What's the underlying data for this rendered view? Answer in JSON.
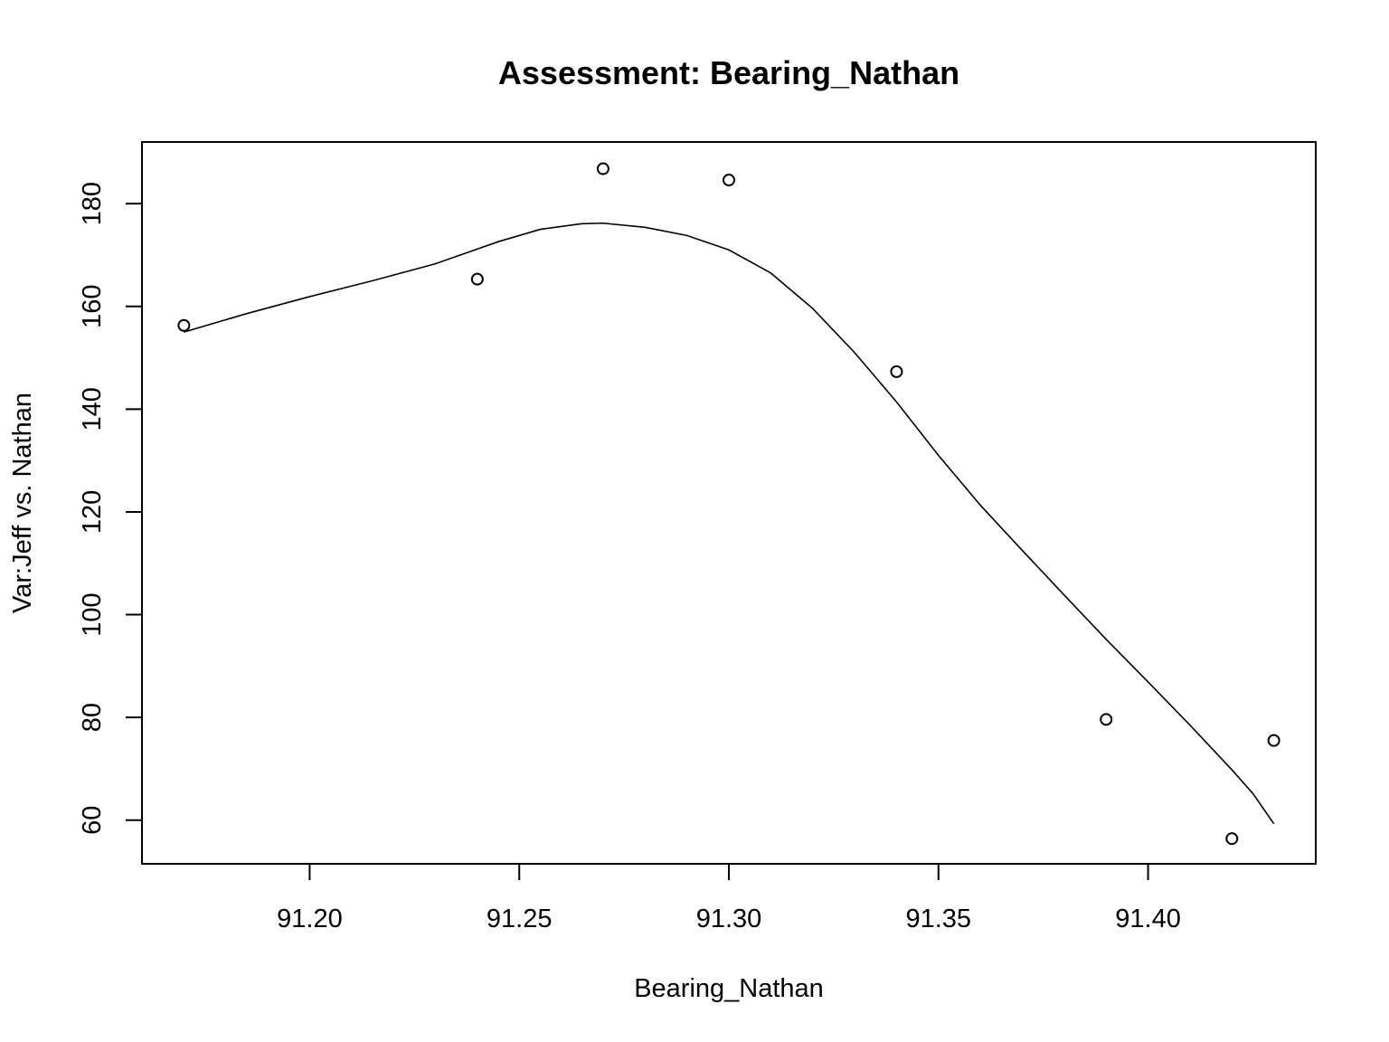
{
  "chart_data": {
    "type": "scatter",
    "title": "Assessment: Bearing_Nathan",
    "xlabel": "Bearing_Nathan",
    "ylabel": "Var:Jeff vs. Nathan",
    "xlim": [
      91.16,
      91.44
    ],
    "ylim": [
      51.5,
      192
    ],
    "x_ticks": [
      91.2,
      91.25,
      91.3,
      91.35,
      91.4
    ],
    "x_tick_labels": [
      "91.20",
      "91.25",
      "91.30",
      "91.35",
      "91.40"
    ],
    "y_ticks": [
      60,
      80,
      100,
      120,
      140,
      160,
      180
    ],
    "y_tick_labels": [
      "60",
      "80",
      "100",
      "120",
      "140",
      "160",
      "180"
    ],
    "grid": false,
    "points": [
      {
        "x": 91.17,
        "y": 156.3
      },
      {
        "x": 91.24,
        "y": 165.3
      },
      {
        "x": 91.27,
        "y": 186.8
      },
      {
        "x": 91.3,
        "y": 184.6
      },
      {
        "x": 91.34,
        "y": 147.3
      },
      {
        "x": 91.39,
        "y": 79.6
      },
      {
        "x": 91.42,
        "y": 56.4
      },
      {
        "x": 91.43,
        "y": 75.5
      }
    ],
    "smooth_line": [
      {
        "x": 91.17,
        "y": 155.0
      },
      {
        "x": 91.185,
        "y": 158.6
      },
      {
        "x": 91.2,
        "y": 161.9
      },
      {
        "x": 91.215,
        "y": 165.0
      },
      {
        "x": 91.23,
        "y": 168.3
      },
      {
        "x": 91.245,
        "y": 172.6
      },
      {
        "x": 91.255,
        "y": 175.0
      },
      {
        "x": 91.265,
        "y": 176.1
      },
      {
        "x": 91.27,
        "y": 176.2
      },
      {
        "x": 91.28,
        "y": 175.4
      },
      {
        "x": 91.29,
        "y": 173.8
      },
      {
        "x": 91.3,
        "y": 171.0
      },
      {
        "x": 91.31,
        "y": 166.5
      },
      {
        "x": 91.32,
        "y": 159.6
      },
      {
        "x": 91.33,
        "y": 151.0
      },
      {
        "x": 91.34,
        "y": 141.4
      },
      {
        "x": 91.35,
        "y": 131.0
      },
      {
        "x": 91.36,
        "y": 121.3
      },
      {
        "x": 91.37,
        "y": 112.5
      },
      {
        "x": 91.38,
        "y": 103.8
      },
      {
        "x": 91.39,
        "y": 95.2
      },
      {
        "x": 91.4,
        "y": 86.9
      },
      {
        "x": 91.41,
        "y": 78.5
      },
      {
        "x": 91.42,
        "y": 69.8
      },
      {
        "x": 91.425,
        "y": 65.2
      },
      {
        "x": 91.43,
        "y": 59.3
      }
    ]
  }
}
